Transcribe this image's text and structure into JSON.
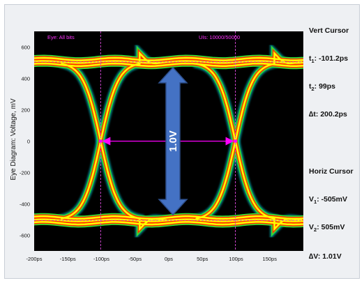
{
  "chart_data": {
    "type": "eye-diagram",
    "ylabel": "Eye Diagram: Voltage, mV",
    "xlim_ps": [
      -200,
      200
    ],
    "ylim_mV": [
      -700,
      700
    ],
    "x_tick_labels": [
      "-200ps",
      "-150ps",
      "-100ps",
      "-50ps",
      "0ps",
      "50ps",
      "100ps",
      "150ps"
    ],
    "x_tick_values": [
      -200,
      -150,
      -100,
      -50,
      0,
      50,
      100,
      150
    ],
    "y_tick_values": [
      600,
      400,
      200,
      0,
      -200,
      -400,
      -600
    ],
    "y_tick_labels": [
      "600",
      "400",
      "200",
      "0",
      "-200",
      "-400",
      "-600"
    ],
    "high_level_mV": 505,
    "low_level_mV": -505,
    "crossings_ps": [
      -101.2,
      99
    ],
    "grid": false,
    "legend_text": "Eye: All bits",
    "ui_text": "UIs: 10000/50000",
    "arrow_label": "1.0V",
    "colors": {
      "plot_bg": "#000000",
      "trace_core": "#ffff00",
      "trace_mid": "#ff3300",
      "trace_outer": "#00dddd",
      "cursor": "#cc44cc",
      "arrow_fill": "#4472c4",
      "arrow_stroke": "#2e4f8c",
      "marker": "#ff00ff"
    }
  },
  "cursors": {
    "vert_title": "Vert Cursor",
    "t1_label": "t",
    "t1_sub": "1",
    "t1_value": ": -101.2ps",
    "t2_label": "t",
    "t2_sub": "2",
    "t2_value": ": 99ps",
    "dt_label": "∆t: 200.2ps",
    "horiz_title": "Horiz Cursor",
    "v1_label": "V",
    "v1_sub": "1",
    "v1_value": ": -505mV",
    "v2_label": "V",
    "v2_sub": "2",
    "v2_value": ": 505mV",
    "dv_label": "∆V: 1.01V"
  }
}
